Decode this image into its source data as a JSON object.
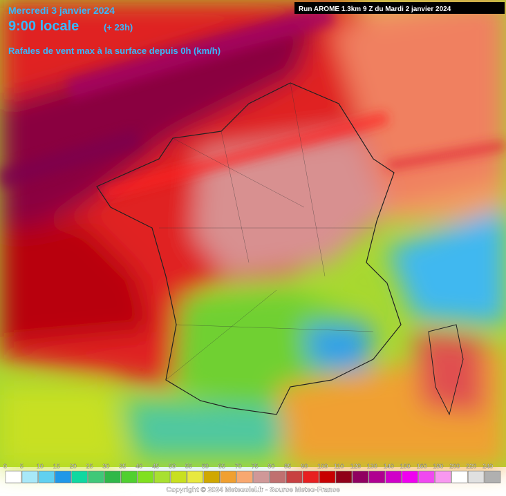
{
  "header": {
    "date": "Mercredi 3 janvier 2024",
    "time": "9:00 locale",
    "lead": "(+ 23h)",
    "parameter": "Rafales de vent max à la surface depuis 0h (km/h)",
    "run": "Run AROME 1.3km 9 Z du Mardi 2 janvier 2024"
  },
  "legend": {
    "items": [
      {
        "value": 0,
        "color": "#ffffff"
      },
      {
        "value": 5,
        "color": "#a8e8f8"
      },
      {
        "value": 10,
        "color": "#60d0f0"
      },
      {
        "value": 15,
        "color": "#2098e8"
      },
      {
        "value": 20,
        "color": "#10d8a0"
      },
      {
        "value": 25,
        "color": "#40c878"
      },
      {
        "value": 30,
        "color": "#30b848"
      },
      {
        "value": 35,
        "color": "#50d030"
      },
      {
        "value": 40,
        "color": "#80e020"
      },
      {
        "value": 45,
        "color": "#a8e030"
      },
      {
        "value": 50,
        "color": "#c8e020"
      },
      {
        "value": 55,
        "color": "#e8e840"
      },
      {
        "value": 60,
        "color": "#d0a800"
      },
      {
        "value": 65,
        "color": "#f0a030"
      },
      {
        "value": 70,
        "color": "#f8a870"
      },
      {
        "value": 75,
        "color": "#d09898"
      },
      {
        "value": 80,
        "color": "#c07070"
      },
      {
        "value": 85,
        "color": "#c84040"
      },
      {
        "value": 90,
        "color": "#e82020"
      },
      {
        "value": 100,
        "color": "#c80000"
      },
      {
        "value": 110,
        "color": "#900018"
      },
      {
        "value": 120,
        "color": "#900060"
      },
      {
        "value": 130,
        "color": "#b00090"
      },
      {
        "value": 140,
        "color": "#d000c8"
      },
      {
        "value": 150,
        "color": "#f000f0"
      },
      {
        "value": 160,
        "color": "#f048f0"
      },
      {
        "value": 180,
        "color": "#f898f0"
      },
      {
        "value": 200,
        "color": "#ffffff"
      },
      {
        "value": 220,
        "color": "#e0e0e0"
      },
      {
        "value": 240,
        "color": "#b0b0b0"
      }
    ]
  },
  "footer": {
    "copyright": "Copyright © 2024 Meteociel.fr - Source Meteo-France"
  }
}
